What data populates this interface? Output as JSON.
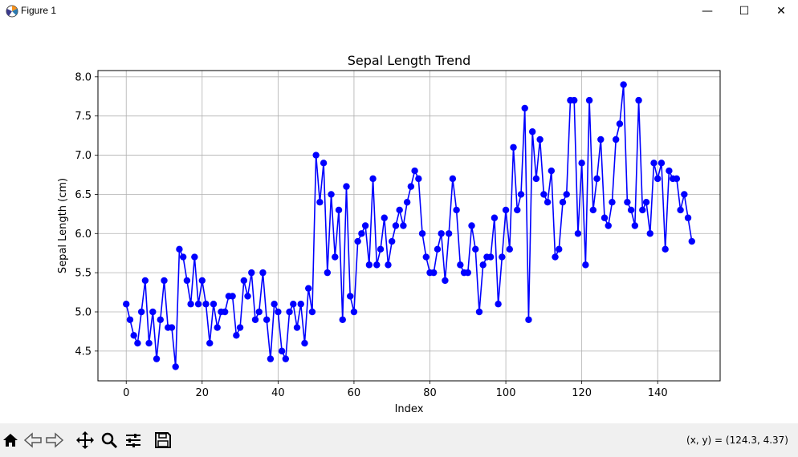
{
  "window": {
    "title": "Figure 1",
    "minimize_glyph": "—",
    "maximize_glyph": "☐",
    "close_glyph": "✕"
  },
  "toolbar": {
    "buttons": [
      "home-icon",
      "back-icon",
      "forward-icon",
      "pan-icon",
      "zoom-icon",
      "configure-subplots-icon",
      "save-icon"
    ],
    "coords_text": "(x, y) = (124.3, 4.37)"
  },
  "colors": {
    "line": "#0000ff",
    "marker": "#0000ff",
    "grid": "#b0b0b0",
    "toolbar_bg": "#f0f0f0"
  },
  "chart_data": {
    "type": "line",
    "title": "Sepal Length Trend",
    "xlabel": "Index",
    "ylabel": "Sepal Length (cm)",
    "xlim": [
      -7.45,
      156.45
    ],
    "ylim": [
      4.12,
      8.08
    ],
    "xticks": [
      0,
      20,
      40,
      60,
      80,
      100,
      120,
      140
    ],
    "yticks": [
      4.5,
      5.0,
      5.5,
      6.0,
      6.5,
      7.0,
      7.5,
      8.0
    ],
    "ytick_labels": [
      "4.5",
      "5.0",
      "5.5",
      "6.0",
      "6.5",
      "7.0",
      "7.5",
      "8.0"
    ],
    "grid": true,
    "marker": "o",
    "series": [
      {
        "values": [
          5.1,
          4.9,
          4.7,
          4.6,
          5.0,
          5.4,
          4.6,
          5.0,
          4.4,
          4.9,
          5.4,
          4.8,
          4.8,
          4.3,
          5.8,
          5.7,
          5.4,
          5.1,
          5.7,
          5.1,
          5.4,
          5.1,
          4.6,
          5.1,
          4.8,
          5.0,
          5.0,
          5.2,
          5.2,
          4.7,
          4.8,
          5.4,
          5.2,
          5.5,
          4.9,
          5.0,
          5.5,
          4.9,
          4.4,
          5.1,
          5.0,
          4.5,
          4.4,
          5.0,
          5.1,
          4.8,
          5.1,
          4.6,
          5.3,
          5.0,
          7.0,
          6.4,
          6.9,
          5.5,
          6.5,
          5.7,
          6.3,
          4.9,
          6.6,
          5.2,
          5.0,
          5.9,
          6.0,
          6.1,
          5.6,
          6.7,
          5.6,
          5.8,
          6.2,
          5.6,
          5.9,
          6.1,
          6.3,
          6.1,
          6.4,
          6.6,
          6.8,
          6.7,
          6.0,
          5.7,
          5.5,
          5.5,
          5.8,
          6.0,
          5.4,
          6.0,
          6.7,
          6.3,
          5.6,
          5.5,
          5.5,
          6.1,
          5.8,
          5.0,
          5.6,
          5.7,
          5.7,
          6.2,
          5.1,
          5.7,
          6.3,
          5.8,
          7.1,
          6.3,
          6.5,
          7.6,
          4.9,
          7.3,
          6.7,
          7.2,
          6.5,
          6.4,
          6.8,
          5.7,
          5.8,
          6.4,
          6.5,
          7.7,
          7.7,
          6.0,
          6.9,
          5.6,
          7.7,
          6.3,
          6.7,
          7.2,
          6.2,
          6.1,
          6.4,
          7.2,
          7.4,
          7.9,
          6.4,
          6.3,
          6.1,
          7.7,
          6.3,
          6.4,
          6.0,
          6.9,
          6.7,
          6.9,
          5.8,
          6.8,
          6.7,
          6.7,
          6.3,
          6.5,
          6.2,
          5.9
        ]
      }
    ]
  }
}
